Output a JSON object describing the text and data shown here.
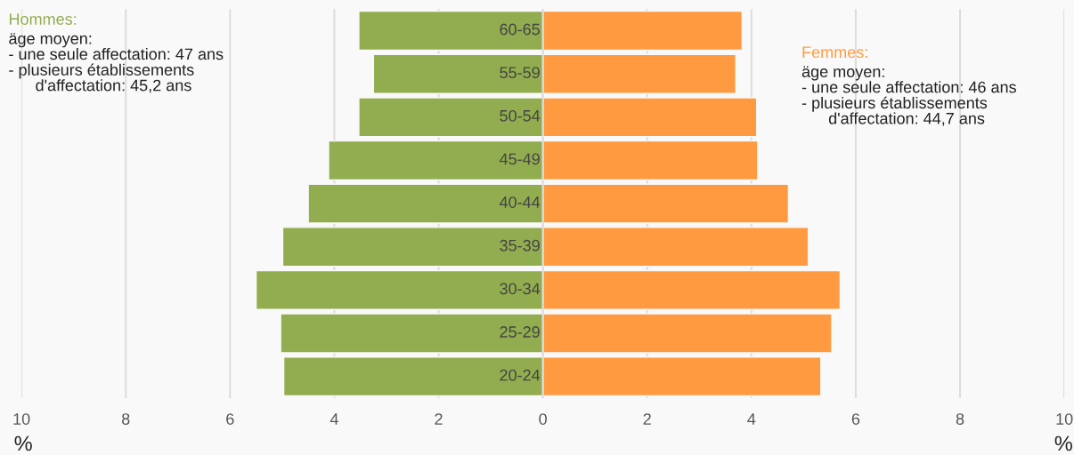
{
  "chart_data": {
    "type": "bar",
    "orientation": "horizontal",
    "stacked": true,
    "categories": [
      "60-65",
      "55-59",
      "50-54",
      "45-49",
      "40-44",
      "35-39",
      "30-34",
      "25-29",
      "20-24"
    ],
    "series": [
      {
        "name": "Hommes:",
        "color": "#92ad4f",
        "values": [
          -3.53,
          -3.25,
          -3.53,
          -4.11,
          -4.5,
          -4.99,
          -5.5,
          -5.03,
          -4.97
        ]
      },
      {
        "name": "Femmes:",
        "color": "#ff9a40",
        "values": [
          3.82,
          3.7,
          4.1,
          4.12,
          4.71,
          5.09,
          5.7,
          5.54,
          5.33
        ]
      }
    ],
    "xlim": [
      -10,
      10
    ],
    "xticks": [
      {
        "value": -10,
        "label": "10"
      },
      {
        "value": -8,
        "label": "8"
      },
      {
        "value": -6,
        "label": "6"
      },
      {
        "value": -4,
        "label": "4"
      },
      {
        "value": -2,
        "label": "2"
      },
      0,
      2,
      4,
      6,
      8,
      10
    ],
    "grid": "x",
    "legend": false,
    "tick_labels": "x",
    "annotations": [
      "äge moyen:\n- une seule affectation: 47 ans\n- plusieurs établissements\n      d'affectation: 45,2 ans",
      "äge moyen:\n- une seule affectation: 46 ans\n- plusieurs établissements\n      d'affectation: 44,7 ans",
      "%",
      "%"
    ]
  }
}
